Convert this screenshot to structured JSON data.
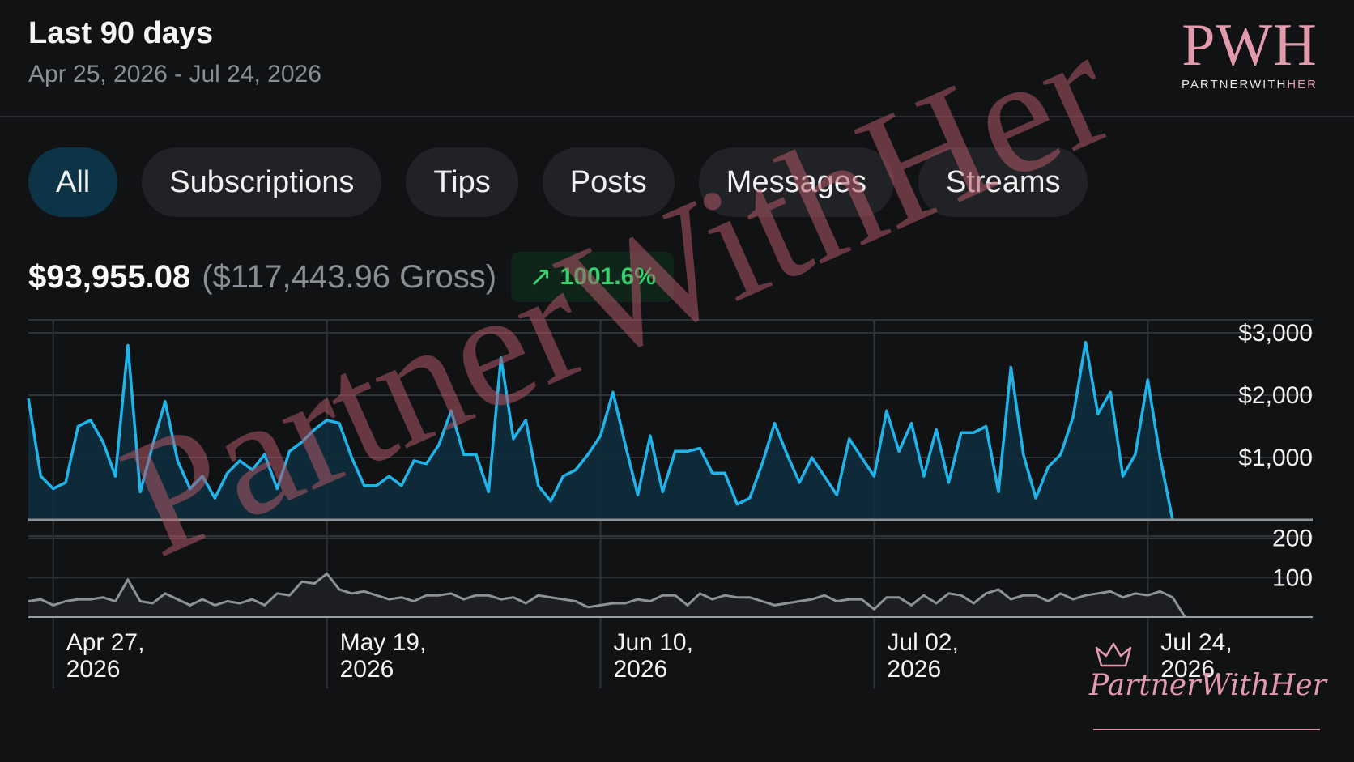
{
  "header": {
    "title": "Last 90 days",
    "date_range": "Apr 25, 2026 - Jul 24, 2026",
    "logo_monogram": "PWH",
    "logo_word_main": "PARTNERWITH",
    "logo_word_accent": "HER"
  },
  "tabs": [
    {
      "label": "All",
      "active": true
    },
    {
      "label": "Subscriptions",
      "active": false
    },
    {
      "label": "Tips",
      "active": false
    },
    {
      "label": "Posts",
      "active": false
    },
    {
      "label": "Messages",
      "active": false
    },
    {
      "label": "Streams",
      "active": false
    }
  ],
  "totals": {
    "net": "$93,955.08",
    "gross": "($117,443.96 Gross)",
    "change": "1001.6%",
    "change_icon": "trend-up-arrow-icon"
  },
  "watermark": "PartnerWithHer",
  "signature": "PartnerWithHer",
  "colors": {
    "earnings_line": "#1fb4ea",
    "earnings_fill": "#0e2c3b",
    "count_line": "#8e9196",
    "change_positive": "#35d26f",
    "brand_pink": "#e39aac",
    "active_tab": "#0c3346"
  },
  "chart_data": [
    {
      "type": "area",
      "series": [
        {
          "name": "",
          "values": [
            1950,
            700,
            500,
            600,
            1500,
            1600,
            1250,
            700,
            2800,
            450,
            1200,
            1900,
            950,
            500,
            700,
            350,
            750,
            950,
            800,
            1050,
            500,
            1100,
            1250,
            1450,
            1600,
            1550,
            1000,
            550,
            550,
            700,
            550,
            950,
            900,
            1200,
            1750,
            1050,
            1050,
            450,
            2600,
            1300,
            1600,
            550,
            300,
            700,
            800,
            1050,
            1350,
            2050,
            1200,
            400,
            1350,
            450,
            1100,
            1100,
            1150,
            750,
            750,
            250,
            350,
            900,
            1550,
            1050,
            600,
            1000,
            700,
            400,
            1300,
            1000,
            700,
            1750,
            1100,
            1550,
            700,
            1450,
            600,
            1400,
            1400,
            1500,
            450,
            2450,
            1050,
            350,
            850,
            1050,
            1650,
            2850,
            1700,
            2050,
            700,
            1050,
            2250,
            1000,
            0
          ]
        }
      ],
      "x_ticks": [
        "Apr 27,\n2026",
        "May 19,\n2026",
        "Jun 10,\n2026",
        "Jul 02,\n2026",
        "Jul 24,\n2026"
      ],
      "y_ticks": [
        "$1,000",
        "$2,000",
        "$3,000"
      ],
      "ylim": [
        0,
        3000
      ],
      "grid": true
    },
    {
      "type": "area",
      "series": [
        {
          "name": "",
          "values": [
            40,
            45,
            30,
            40,
            45,
            45,
            50,
            40,
            95,
            40,
            35,
            60,
            45,
            30,
            45,
            30,
            40,
            35,
            45,
            30,
            60,
            55,
            90,
            85,
            110,
            70,
            60,
            65,
            55,
            45,
            50,
            40,
            55,
            55,
            60,
            45,
            55,
            55,
            45,
            50,
            35,
            55,
            50,
            45,
            40,
            25,
            30,
            35,
            35,
            45,
            40,
            55,
            55,
            30,
            60,
            45,
            55,
            50,
            50,
            40,
            30,
            35,
            40,
            45,
            55,
            40,
            45,
            45,
            20,
            50,
            50,
            30,
            55,
            35,
            60,
            55,
            35,
            60,
            70,
            45,
            55,
            55,
            40,
            60,
            45,
            55,
            60,
            65,
            50,
            60,
            55,
            65,
            50,
            0
          ]
        }
      ],
      "y_ticks": [
        "100",
        "200"
      ],
      "ylim": [
        0,
        230
      ],
      "grid": true
    }
  ]
}
